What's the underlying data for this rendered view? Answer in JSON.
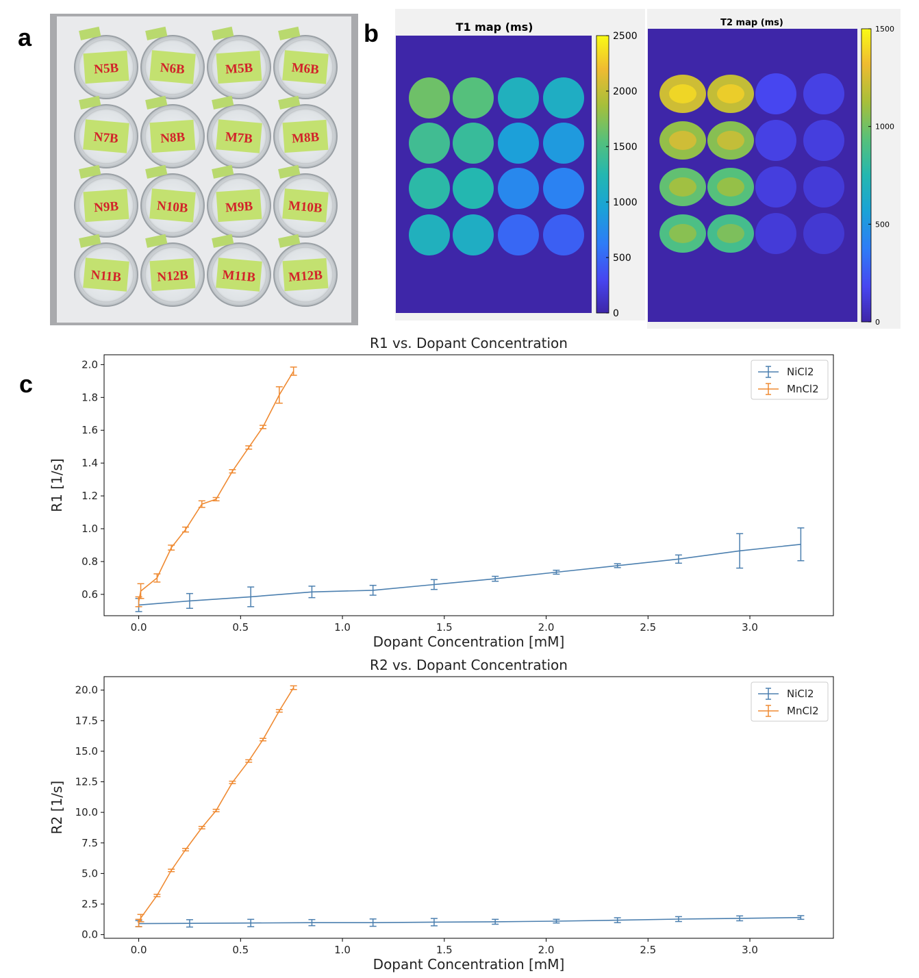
{
  "panels": {
    "a": "a",
    "b": "b",
    "c": "c"
  },
  "photo": {
    "tube_labels": [
      [
        "N5B",
        "N6B",
        "M5B",
        "M6B"
      ],
      [
        "N7B",
        "N8B",
        "M7B",
        "M8B"
      ],
      [
        "N9B",
        "N10B",
        "M9B",
        "M10B"
      ],
      [
        "N11B",
        "N12B",
        "M11B",
        "M12B"
      ]
    ]
  },
  "maps": {
    "t1": {
      "title": "T1 map (ms)",
      "colorbar_ticks": [
        "2500",
        "2000",
        "1500",
        "1000",
        "500",
        "0"
      ],
      "range": [
        0,
        2500
      ]
    },
    "t2": {
      "title": "T2 map (ms)",
      "colorbar_ticks": [
        "1500",
        "1000",
        "500",
        "0"
      ],
      "range": [
        0,
        1500
      ]
    }
  },
  "chart_data": [
    {
      "type": "line",
      "title": "R1 vs. Dopant Concentration",
      "xlabel": "Dopant Concentration [mM]",
      "ylabel": "R1 [1/s]",
      "xlim": [
        -0.17,
        3.41
      ],
      "ylim": [
        0.47,
        2.06
      ],
      "xticks": [
        0.0,
        0.5,
        1.0,
        1.5,
        2.0,
        2.5,
        3.0
      ],
      "xtick_labels": [
        "0.0",
        "0.5",
        "1.0",
        "1.5",
        "2.0",
        "2.5",
        "3.0"
      ],
      "yticks": [
        0.6,
        0.8,
        1.0,
        1.2,
        1.4,
        1.6,
        1.8,
        2.0
      ],
      "ytick_labels": [
        "0.6",
        "0.8",
        "1.0",
        "1.2",
        "1.4",
        "1.6",
        "1.8",
        "2.0"
      ],
      "legend": "top-right",
      "series": [
        {
          "name": "NiCl2",
          "color": "#4b7faf",
          "x": [
            0.0,
            0.25,
            0.55,
            0.85,
            1.15,
            1.45,
            1.75,
            2.05,
            2.35,
            2.65,
            2.95,
            3.25
          ],
          "y": [
            0.535,
            0.56,
            0.585,
            0.615,
            0.625,
            0.66,
            0.695,
            0.735,
            0.775,
            0.815,
            0.865,
            0.905
          ],
          "err": [
            0.04,
            0.045,
            0.06,
            0.035,
            0.03,
            0.03,
            0.015,
            0.012,
            0.012,
            0.025,
            0.105,
            0.1
          ]
        },
        {
          "name": "MnCl2",
          "color": "#ef8a32",
          "x": [
            0.0,
            0.01,
            0.09,
            0.16,
            0.23,
            0.31,
            0.38,
            0.46,
            0.54,
            0.61,
            0.69,
            0.76
          ],
          "y": [
            0.555,
            0.62,
            0.7,
            0.885,
            0.995,
            1.15,
            1.18,
            1.35,
            1.495,
            1.62,
            1.815,
            1.96
          ],
          "err": [
            0.03,
            0.045,
            0.025,
            0.015,
            0.015,
            0.02,
            0.01,
            0.01,
            0.01,
            0.01,
            0.05,
            0.025
          ]
        }
      ]
    },
    {
      "type": "line",
      "title": "R2 vs. Dopant Concentration",
      "xlabel": "Dopant Concentration [mM]",
      "ylabel": "R2 [1/s]",
      "xlim": [
        -0.17,
        3.41
      ],
      "ylim": [
        -0.3,
        21.1
      ],
      "xticks": [
        0.0,
        0.5,
        1.0,
        1.5,
        2.0,
        2.5,
        3.0
      ],
      "xtick_labels": [
        "0.0",
        "0.5",
        "1.0",
        "1.5",
        "2.0",
        "2.5",
        "3.0"
      ],
      "yticks": [
        0.0,
        2.5,
        5.0,
        7.5,
        10.0,
        12.5,
        15.0,
        17.5,
        20.0
      ],
      "ytick_labels": [
        "0.0",
        "2.5",
        "5.0",
        "7.5",
        "10.0",
        "12.5",
        "15.0",
        "17.5",
        "20.0"
      ],
      "legend": "top-right",
      "series": [
        {
          "name": "NiCl2",
          "color": "#4b7faf",
          "x": [
            0.0,
            0.25,
            0.55,
            0.85,
            1.15,
            1.45,
            1.75,
            2.05,
            2.35,
            2.65,
            2.95,
            3.25
          ],
          "y": [
            0.9,
            0.92,
            0.95,
            0.98,
            0.98,
            1.02,
            1.05,
            1.1,
            1.18,
            1.27,
            1.33,
            1.4
          ],
          "err": [
            0.25,
            0.3,
            0.3,
            0.25,
            0.3,
            0.3,
            0.2,
            0.15,
            0.2,
            0.2,
            0.2,
            0.15
          ]
        },
        {
          "name": "MnCl2",
          "color": "#ef8a32",
          "x": [
            0.0,
            0.01,
            0.09,
            0.16,
            0.23,
            0.31,
            0.38,
            0.46,
            0.54,
            0.61,
            0.69,
            0.76
          ],
          "y": [
            0.95,
            1.35,
            3.2,
            5.25,
            6.95,
            8.75,
            10.15,
            12.45,
            14.2,
            15.95,
            18.3,
            20.2
          ],
          "err": [
            0.3,
            0.3,
            0.1,
            0.1,
            0.1,
            0.1,
            0.1,
            0.1,
            0.1,
            0.1,
            0.1,
            0.15
          ]
        }
      ]
    }
  ]
}
